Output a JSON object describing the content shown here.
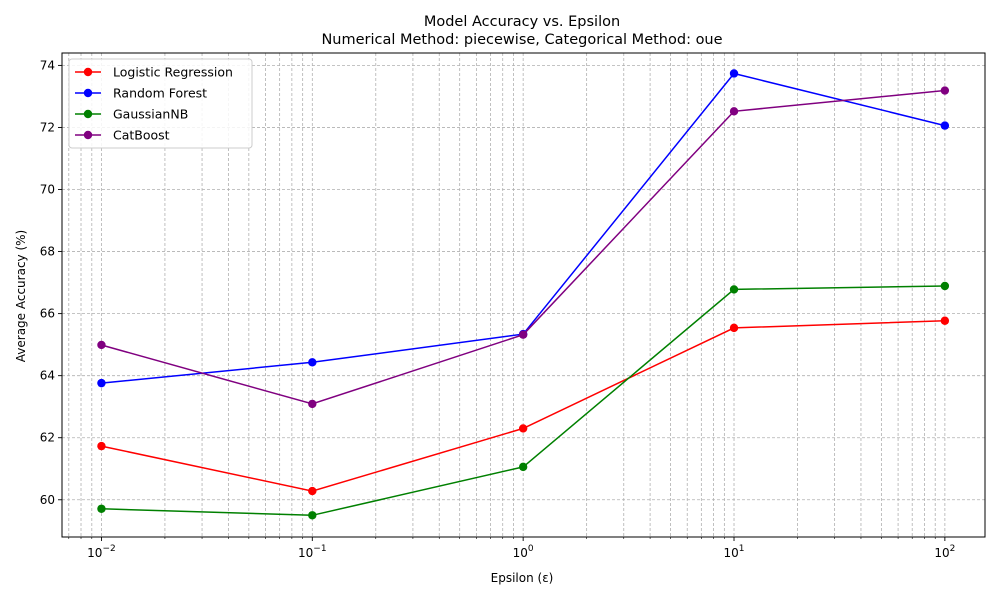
{
  "chart_data": {
    "type": "line",
    "title": "Model Accuracy vs. Epsilon",
    "subtitle": "Numerical Method: piecewise, Categorical Method: oue",
    "xlabel": "Epsilon (ε)",
    "ylabel": "Average Accuracy (%)",
    "xscale": "log",
    "x": [
      0.01,
      0.1,
      1,
      10,
      100
    ],
    "xlim": [
      0.0065,
      155
    ],
    "ylim": [
      58.8,
      74.4
    ],
    "x_ticks": [
      {
        "value": 0.01,
        "base": "10",
        "exp": "−2"
      },
      {
        "value": 0.1,
        "base": "10",
        "exp": "−1"
      },
      {
        "value": 1,
        "base": "10",
        "exp": "0"
      },
      {
        "value": 10,
        "base": "10",
        "exp": "1"
      },
      {
        "value": 100,
        "base": "10",
        "exp": "2"
      }
    ],
    "y_ticks": [
      {
        "value": 60,
        "label": "60"
      },
      {
        "value": 62,
        "label": "62"
      },
      {
        "value": 64,
        "label": "64"
      },
      {
        "value": 66,
        "label": "66"
      },
      {
        "value": 68,
        "label": "68"
      },
      {
        "value": 70,
        "label": "70"
      },
      {
        "value": 72,
        "label": "72"
      },
      {
        "value": 74,
        "label": "74"
      }
    ],
    "grid": true,
    "legend_position": "top-left",
    "series": [
      {
        "name": "Logistic Regression",
        "color": "#ff0000",
        "values": [
          61.73,
          60.28,
          62.3,
          65.54,
          65.77
        ]
      },
      {
        "name": "Random Forest",
        "color": "#0000ff",
        "values": [
          63.76,
          64.43,
          65.34,
          73.74,
          72.06
        ]
      },
      {
        "name": "GaussianNB",
        "color": "#008000",
        "values": [
          59.71,
          59.5,
          61.06,
          66.78,
          66.89
        ]
      },
      {
        "name": "CatBoost",
        "color": "#800080",
        "values": [
          64.99,
          63.09,
          65.32,
          72.52,
          73.19
        ]
      }
    ]
  }
}
